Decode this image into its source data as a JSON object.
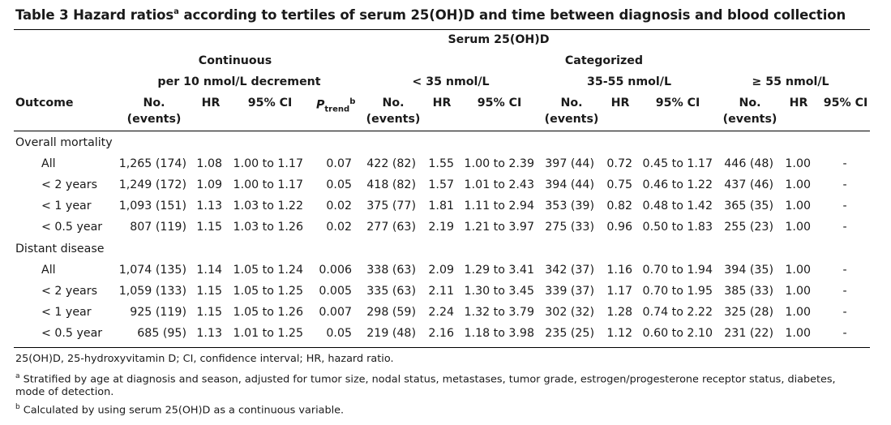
{
  "title": {
    "main": "Table 3 Hazard ratios",
    "sup": "a",
    "rest": " according to tertiles of serum 25(OH)D and time between diagnosis and blood collection"
  },
  "headers": {
    "serum": "Serum 25(OH)D",
    "continuous": "Continuous",
    "categorized": "Categorized",
    "per10": "per 10 nmol/L decrement",
    "lt35": "< 35 nmol/L",
    "mid": "35-55 nmol/L",
    "ge55": "≥ 55 nmol/L",
    "outcome": "Outcome",
    "no": "No.",
    "events": "(events)",
    "hr": "HR",
    "ci": "95% CI",
    "ptrend_p": "P",
    "ptrend_sub": "trend",
    "ptrend_sup": "b"
  },
  "groups": [
    {
      "label": "Overall mortality",
      "rows": [
        {
          "label": "All",
          "cont_no": "1,265 (174)",
          "cont_hr": "1.08",
          "cont_ci": "1.00 to 1.17",
          "ptrend": "0.07",
          "lt35_no": "422 (82)",
          "lt35_hr": "1.55",
          "lt35_ci": "1.00 to 2.39",
          "mid_no": "397 (44)",
          "mid_hr": "0.72",
          "mid_ci": "0.45 to 1.17",
          "ge55_no": "446 (48)",
          "ge55_hr": "1.00",
          "ge55_ci": "-"
        },
        {
          "label": "< 2 years",
          "cont_no": "1,249 (172)",
          "cont_hr": "1.09",
          "cont_ci": "1.00 to 1.17",
          "ptrend": "0.05",
          "lt35_no": "418 (82)",
          "lt35_hr": "1.57",
          "lt35_ci": "1.01 to 2.43",
          "mid_no": "394 (44)",
          "mid_hr": "0.75",
          "mid_ci": "0.46 to 1.22",
          "ge55_no": "437 (46)",
          "ge55_hr": "1.00",
          "ge55_ci": "-"
        },
        {
          "label": "< 1 year",
          "cont_no": "1,093 (151)",
          "cont_hr": "1.13",
          "cont_ci": "1.03 to 1.22",
          "ptrend": "0.02",
          "lt35_no": "375 (77)",
          "lt35_hr": "1.81",
          "lt35_ci": "1.11 to 2.94",
          "mid_no": "353 (39)",
          "mid_hr": "0.82",
          "mid_ci": "0.48 to 1.42",
          "ge55_no": "365 (35)",
          "ge55_hr": "1.00",
          "ge55_ci": "-"
        },
        {
          "label": "< 0.5 year",
          "cont_no": "807 (119)",
          "cont_hr": "1.15",
          "cont_ci": "1.03 to 1.26",
          "ptrend": "0.02",
          "lt35_no": "277 (63)",
          "lt35_hr": "2.19",
          "lt35_ci": "1.21 to 3.97",
          "mid_no": "275 (33)",
          "mid_hr": "0.96",
          "mid_ci": "0.50 to 1.83",
          "ge55_no": "255 (23)",
          "ge55_hr": "1.00",
          "ge55_ci": "-"
        }
      ]
    },
    {
      "label": "Distant disease",
      "rows": [
        {
          "label": "All",
          "cont_no": "1,074 (135)",
          "cont_hr": "1.14",
          "cont_ci": "1.05 to 1.24",
          "ptrend": "0.006",
          "lt35_no": "338 (63)",
          "lt35_hr": "2.09",
          "lt35_ci": "1.29 to 3.41",
          "mid_no": "342 (37)",
          "mid_hr": "1.16",
          "mid_ci": "0.70 to 1.94",
          "ge55_no": "394 (35)",
          "ge55_hr": "1.00",
          "ge55_ci": "-"
        },
        {
          "label": "< 2 years",
          "cont_no": "1,059 (133)",
          "cont_hr": "1.15",
          "cont_ci": "1.05 to 1.25",
          "ptrend": "0.005",
          "lt35_no": "335 (63)",
          "lt35_hr": "2.11",
          "lt35_ci": "1.30 to 3.45",
          "mid_no": "339 (37)",
          "mid_hr": "1.17",
          "mid_ci": "0.70 to 1.95",
          "ge55_no": "385 (33)",
          "ge55_hr": "1.00",
          "ge55_ci": "-"
        },
        {
          "label": "< 1 year",
          "cont_no": "925 (119)",
          "cont_hr": "1.15",
          "cont_ci": "1.05 to 1.26",
          "ptrend": "0.007",
          "lt35_no": "298 (59)",
          "lt35_hr": "2.24",
          "lt35_ci": "1.32 to 3.79",
          "mid_no": "302 (32)",
          "mid_hr": "1.28",
          "mid_ci": "0.74 to 2.22",
          "ge55_no": "325 (28)",
          "ge55_hr": "1.00",
          "ge55_ci": "-"
        },
        {
          "label": "< 0.5 year",
          "cont_no": "685 (95)",
          "cont_hr": "1.13",
          "cont_ci": "1.01 to 1.25",
          "ptrend": "0.05",
          "lt35_no": "219 (48)",
          "lt35_hr": "2.16",
          "lt35_ci": "1.18 to 3.98",
          "mid_no": "235 (25)",
          "mid_hr": "1.12",
          "mid_ci": "0.60 to 2.10",
          "ge55_no": "231 (22)",
          "ge55_hr": "1.00",
          "ge55_ci": "-"
        }
      ]
    }
  ],
  "footnotes": {
    "abbrev": "25(OH)D, 25-hydroxyvitamin D; CI, confidence interval; HR, hazard ratio.",
    "a_mark": "a",
    "a_text": " Stratified by age at diagnosis and season, adjusted for tumor size, nodal status, metastases, tumor grade, estrogen/progesterone receptor status, diabetes, mode of detection.",
    "b_mark": "b",
    "b_text": " Calculated by using serum 25(OH)D as a continuous variable."
  }
}
